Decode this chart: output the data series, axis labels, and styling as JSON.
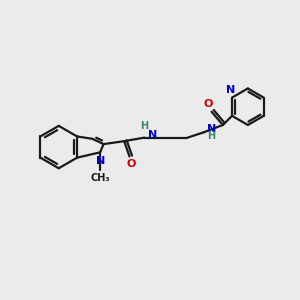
{
  "background_color": "#ebebeb",
  "bond_color": "#1a1a1a",
  "N_color": "#0000cc",
  "O_color": "#cc0000",
  "H_color": "#3a8a6a",
  "figsize": [
    3.0,
    3.0
  ],
  "dpi": 100,
  "xlim": [
    0,
    10
  ],
  "ylim": [
    0,
    10
  ]
}
